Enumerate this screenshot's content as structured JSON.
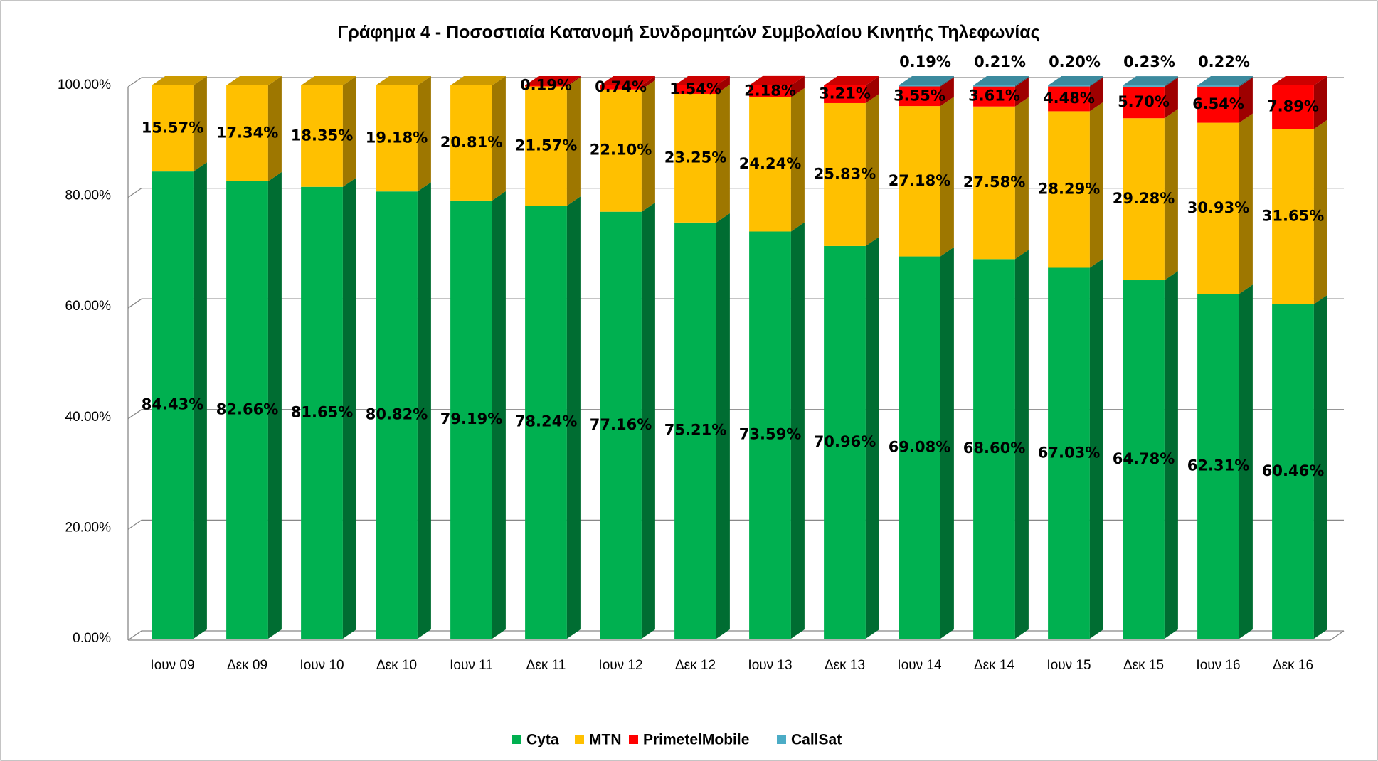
{
  "chart_data": {
    "type": "bar",
    "stacked": true,
    "title": "Γράφημα 4 - Ποσοστιαία Κατανομή Συνδρομητών Συμβολαίου Κινητής Τηλεφωνίας",
    "categories": [
      "Ιουν 09",
      "Δεκ 09",
      "Ιουν 10",
      "Δεκ 10",
      "Ιουν 11",
      "Δεκ 11",
      "Ιουν 12",
      "Δεκ 12",
      "Ιουν 13",
      "Δεκ 13",
      "Ιουν 14",
      "Δεκ 14",
      "Ιουν 15",
      "Δεκ 15",
      "Ιουν 16",
      "Δεκ 16"
    ],
    "series": [
      {
        "name": "Cyta",
        "color": "#00b050",
        "values": [
          84.43,
          82.66,
          81.65,
          80.82,
          79.19,
          78.24,
          77.16,
          75.21,
          73.59,
          70.96,
          69.08,
          68.6,
          67.03,
          64.78,
          62.31,
          60.46
        ],
        "value_labels": [
          "84.43%",
          "82.66%",
          "81.65%",
          "80.82%",
          "79.19%",
          "78.24%",
          "77.16%",
          "75.21%",
          "73.59%",
          "70.96%",
          "69.08%",
          "68.60%",
          "67.03%",
          "64.78%",
          "62.31%",
          "60.46%"
        ]
      },
      {
        "name": "MTN",
        "color": "#ffc000",
        "values": [
          15.57,
          17.34,
          18.35,
          19.18,
          20.81,
          21.57,
          22.1,
          23.25,
          24.24,
          25.83,
          27.18,
          27.58,
          28.29,
          29.28,
          30.93,
          31.65
        ],
        "value_labels": [
          "15.57%",
          "17.34%",
          "18.35%",
          "19.18%",
          "20.81%",
          "21.57%",
          "22.10%",
          "23.25%",
          "24.24%",
          "25.83%",
          "27.18%",
          "27.58%",
          "28.29%",
          "29.28%",
          "30.93%",
          "31.65%"
        ]
      },
      {
        "name": "PrimetelMobile",
        "color": "#ff0000",
        "values": [
          null,
          null,
          null,
          null,
          null,
          0.19,
          0.74,
          1.54,
          2.18,
          3.21,
          3.55,
          3.61,
          4.48,
          5.7,
          6.54,
          7.89
        ],
        "value_labels": [
          null,
          null,
          null,
          null,
          null,
          "0.19%",
          "0.74%",
          "1.54%",
          "2.18%",
          "3.21%",
          "3.55%",
          "3.61%",
          "4.48%",
          "5.70%",
          "6.54%",
          "7.89%"
        ]
      },
      {
        "name": "CallSat",
        "color": "#4bacc6",
        "values": [
          null,
          null,
          null,
          null,
          null,
          null,
          null,
          null,
          null,
          null,
          0.19,
          0.21,
          0.2,
          0.23,
          0.22,
          null
        ],
        "value_labels": [
          null,
          null,
          null,
          null,
          null,
          null,
          null,
          null,
          null,
          null,
          "0.19%",
          "0.21%",
          "0.20%",
          "0.23%",
          "0.22%",
          null
        ]
      }
    ],
    "ylim": [
      0,
      100
    ],
    "yticks": [
      {
        "value": 0,
        "label": "0.00%"
      },
      {
        "value": 20,
        "label": "20.00%"
      },
      {
        "value": 40,
        "label": "40.00%"
      },
      {
        "value": 60,
        "label": "60.00%"
      },
      {
        "value": 80,
        "label": "80.00%"
      },
      {
        "value": 100,
        "label": "100.00%"
      }
    ],
    "grid": true,
    "legend": "bottom"
  }
}
